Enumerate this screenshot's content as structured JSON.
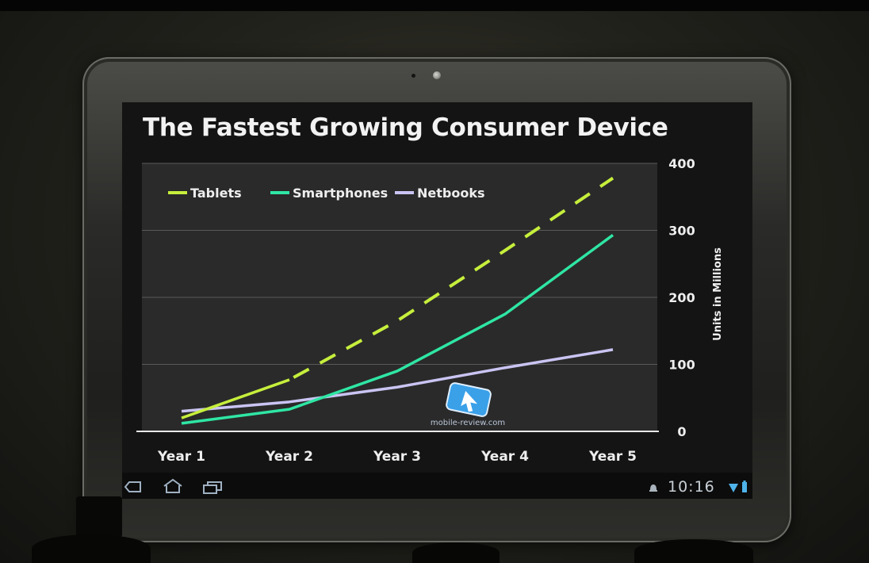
{
  "screen": {
    "title": "The Fastest Growing Consumer Device",
    "clock": "10:16",
    "watermark": "mobile-review.com"
  },
  "system_bar": {
    "icons": [
      "back-icon",
      "home-icon",
      "recent-apps-icon",
      "notification-icon",
      "wifi-icon",
      "battery-icon"
    ]
  },
  "colors": {
    "tablets": "#c6ef3c",
    "smartphones": "#2fe6a4",
    "netbooks": "#c9c4f2",
    "plot_bg": "#2a2a2a",
    "screen_bg": "#141414"
  },
  "chart_data": {
    "type": "line",
    "title": "The Fastest Growing Consumer Device",
    "categories": [
      "Year 1",
      "Year 2",
      "Year 3",
      "Year 4",
      "Year 5"
    ],
    "ylabel": "Units in Millions",
    "ylim": [
      0,
      400
    ],
    "yticks": [
      0,
      100,
      200,
      300,
      400
    ],
    "y_axis_side": "right",
    "grid": true,
    "legend": "top-left",
    "series": [
      {
        "name": "Tablets",
        "values": [
          20,
          77,
          165,
          270,
          378
        ],
        "style": "solid-then-dashed"
      },
      {
        "name": "Smartphones",
        "values": [
          12,
          33,
          90,
          175,
          293
        ],
        "style": "solid"
      },
      {
        "name": "Netbooks",
        "values": [
          30,
          44,
          66,
          95,
          122
        ],
        "style": "solid"
      }
    ]
  }
}
